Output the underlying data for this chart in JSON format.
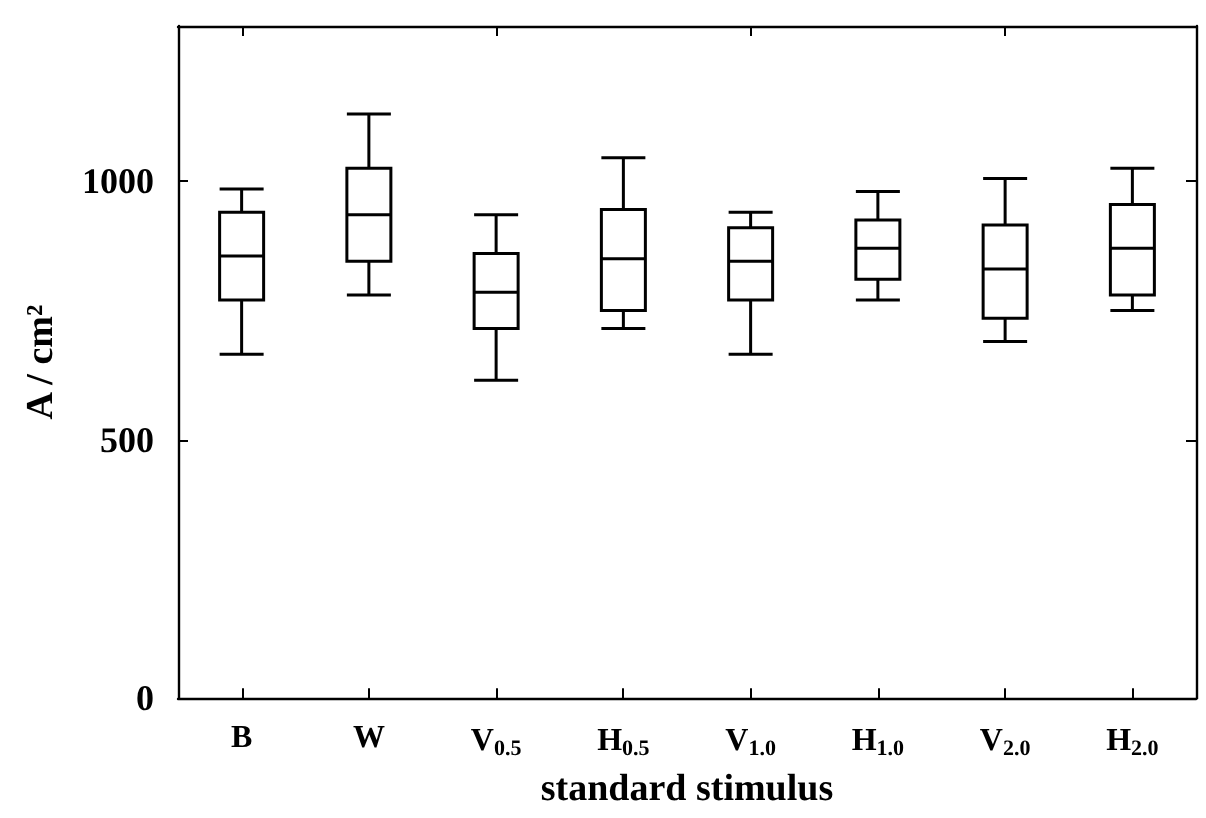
{
  "chart_data": {
    "type": "box",
    "xlabel": "standard stimulus",
    "ylabel": "A / cm²",
    "categories": [
      "B",
      "W",
      "V$_{0.5}$",
      "H$_{0.5}$",
      "V$_{1.0}$",
      "H$_{1.0}$",
      "V$_{2.0}$",
      "H$_{2.0}$"
    ],
    "boxes": [
      {
        "low": 665,
        "q1": 770,
        "median": 855,
        "q3": 940,
        "high": 985
      },
      {
        "low": 780,
        "q1": 845,
        "median": 935,
        "q3": 1025,
        "high": 1130
      },
      {
        "low": 615,
        "q1": 715,
        "median": 785,
        "q3": 860,
        "high": 935
      },
      {
        "low": 715,
        "q1": 750,
        "median": 850,
        "q3": 945,
        "high": 1045
      },
      {
        "low": 665,
        "q1": 770,
        "median": 845,
        "q3": 910,
        "high": 940
      },
      {
        "low": 770,
        "q1": 810,
        "median": 870,
        "q3": 925,
        "high": 980
      },
      {
        "low": 690,
        "q1": 735,
        "median": 830,
        "q3": 915,
        "high": 1005
      },
      {
        "low": 750,
        "q1": 780,
        "median": 870,
        "q3": 955,
        "high": 1025
      }
    ],
    "ylim": [
      0,
      1300
    ],
    "yticks": [
      0,
      500,
      1000
    ]
  }
}
